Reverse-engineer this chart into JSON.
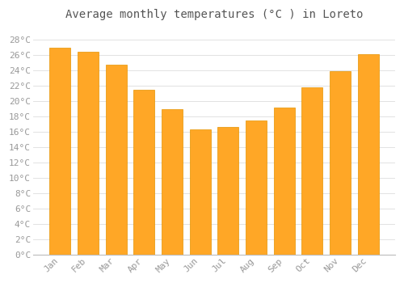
{
  "title": "Average monthly temperatures (°C ) in Loreto",
  "months": [
    "Jan",
    "Feb",
    "Mar",
    "Apr",
    "May",
    "Jun",
    "Jul",
    "Aug",
    "Sep",
    "Oct",
    "Nov",
    "Dec"
  ],
  "values": [
    27.0,
    26.5,
    24.8,
    21.5,
    19.0,
    16.3,
    16.6,
    17.5,
    19.2,
    21.8,
    23.9,
    26.1
  ],
  "bar_color": "#FFA726",
  "bar_edge_color": "#E59400",
  "background_color": "#FFFFFF",
  "grid_color": "#DDDDDD",
  "ylim": [
    0,
    30
  ],
  "ytick_step": 2,
  "title_fontsize": 10,
  "tick_fontsize": 8,
  "tick_color": "#999999",
  "title_color": "#555555",
  "bar_width": 0.75,
  "spine_color": "#BBBBBB"
}
